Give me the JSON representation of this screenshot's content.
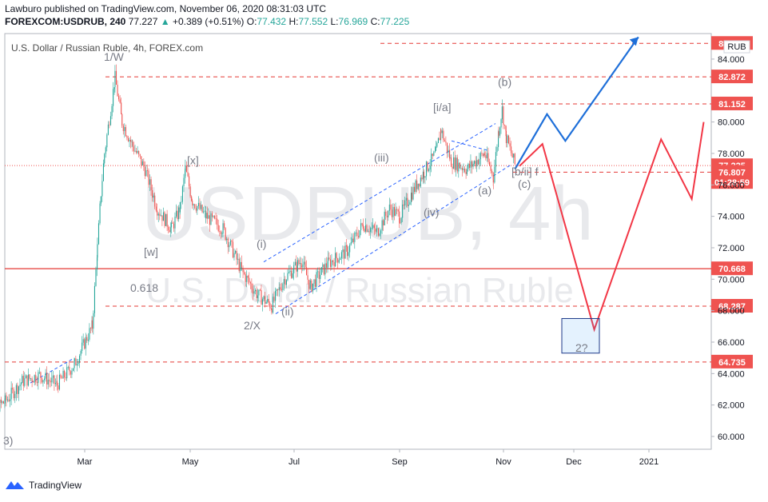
{
  "header": {
    "line1": "Lawburo published on TradingView.com, November 06, 2020 08:31:03 UTC",
    "symbol": "FOREXCOM:USDRUB, 240",
    "price": "77.227",
    "change": "+0.389 (+0.51%)",
    "o_label": "O:",
    "o_val": "77.432",
    "h_label": "H:",
    "h_val": "77.552",
    "l_label": "L:",
    "l_val": "76.969",
    "c_label": "C:",
    "c_val": "77.225"
  },
  "plot_title": "U.S. Dollar / Russian Ruble, 4h, FOREX.com",
  "currency_button": "RUB",
  "watermark": {
    "symbol": "USDRUB, 4h",
    "name": "U.S. Dollar / Russian Ruble"
  },
  "footer": {
    "brand": "TradingView"
  },
  "colors": {
    "up": "#26a69a",
    "down": "#ef5350",
    "blue_path": "#2962ff",
    "red_path": "#f23645",
    "level": "#e53935"
  },
  "chart_data": {
    "type": "candlestick",
    "title": "U.S. Dollar / Russian Ruble, 4h, FOREX.com",
    "y_unit": "RUB",
    "ylim": [
      59,
      85.5
    ],
    "x_ticks": [
      "Mar",
      "May",
      "Jul",
      "Sep",
      "Nov",
      "Dec",
      "2021"
    ],
    "y_ticks": [
      "60.000",
      "62.000",
      "64.000",
      "66.000",
      "68.000",
      "70.000",
      "72.000",
      "74.000",
      "76.000",
      "78.000",
      "80.000",
      "84.000"
    ],
    "price_path": [
      [
        "Jan 01",
        61.3
      ],
      [
        "Jan 15",
        62.2
      ],
      [
        "Jan 25",
        63.5
      ],
      [
        "Feb 05",
        63.9
      ],
      [
        "Feb 15",
        63.3
      ],
      [
        "Feb 25",
        64.6
      ],
      [
        "Mar 05",
        67.0
      ],
      [
        "Mar 08",
        72.0
      ],
      [
        "Mar 10",
        75.5
      ],
      [
        "Mar 12",
        78.0
      ],
      [
        "Mar 18",
        82.8
      ],
      [
        "Mar 22",
        80.0
      ],
      [
        "Mar 28",
        78.5
      ],
      [
        "Apr 05",
        77.0
      ],
      [
        "Apr 12",
        74.5
      ],
      [
        "Apr 20",
        73.2
      ],
      [
        "Apr 25",
        74.5
      ],
      [
        "Apr 28",
        77.0
      ],
      [
        "May 02",
        75.0
      ],
      [
        "May 10",
        74.0
      ],
      [
        "May 20",
        73.2
      ],
      [
        "Jun 01",
        70.5
      ],
      [
        "Jun 10",
        69.0
      ],
      [
        "Jun 18",
        68.3
      ],
      [
        "Jun 25",
        70.0
      ],
      [
        "Jul 05",
        71.2
      ],
      [
        "Jul 10",
        69.5
      ],
      [
        "Jul 20",
        71.0
      ],
      [
        "Aug 01",
        71.8
      ],
      [
        "Aug 10",
        73.5
      ],
      [
        "Aug 18",
        73.0
      ],
      [
        "Aug 25",
        74.5
      ],
      [
        "Sep 01",
        74.0
      ],
      [
        "Sep 08",
        75.5
      ],
      [
        "Sep 15",
        76.8
      ],
      [
        "Sep 22",
        78.0
      ],
      [
        "Sep 25",
        79.5
      ],
      [
        "Oct 01",
        77.5
      ],
      [
        "Oct 10",
        77.0
      ],
      [
        "Oct 20",
        78.0
      ],
      [
        "Oct 25",
        76.5
      ],
      [
        "Oct 28",
        79.5
      ],
      [
        "Oct 30",
        80.8
      ],
      [
        "Nov 02",
        79.0
      ],
      [
        "Nov 06",
        77.2
      ]
    ],
    "levels": [
      {
        "label": "85.000",
        "value": 85.0
      },
      {
        "label": "82.872",
        "value": 82.872
      },
      {
        "label": "81.152",
        "value": 81.152
      },
      {
        "label": "77.225",
        "value": 77.225,
        "kind": "current"
      },
      {
        "label": "01:28:59",
        "kind": "countdown"
      },
      {
        "label": "76.807",
        "value": 76.807
      },
      {
        "label": "70.668",
        "value": 70.668
      },
      {
        "label": "68.287",
        "value": 68.287
      },
      {
        "label": "64.735",
        "value": 64.735
      }
    ],
    "blue_projection": [
      [
        "Nov 06",
        77.0
      ],
      [
        "Nov 20",
        80.5
      ],
      [
        "Nov 28",
        78.8
      ],
      [
        "Dec 28",
        85.4
      ]
    ],
    "red_projection": [
      [
        "Nov 08",
        77.2
      ],
      [
        "Nov 18",
        78.6
      ],
      [
        "Dec 10",
        66.8
      ],
      [
        "Jan 10",
        78.9
      ],
      [
        "Jan 28",
        75.1
      ],
      [
        "Feb 05",
        80.0
      ]
    ],
    "wave_labels": [
      "1/W",
      "[x]",
      "[w]",
      "0.618",
      "(i)",
      "2/X",
      "(ii)",
      "(iii)",
      "(iv)",
      "[i/a]",
      "(a)",
      "(b)",
      "(c)",
      "[b/ii] f",
      "2?",
      "3)"
    ]
  }
}
